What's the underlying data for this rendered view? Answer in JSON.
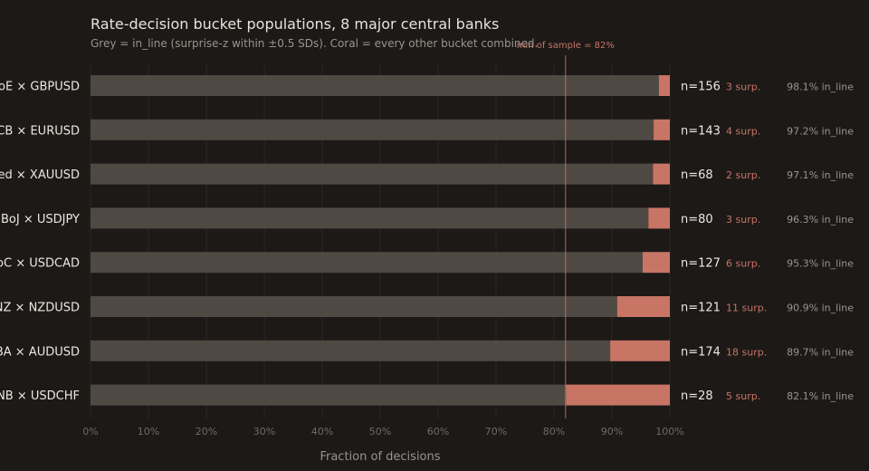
{
  "colors": {
    "background": "#1c1917",
    "in_line": "#4f4944",
    "other": "#c87565",
    "grid": "#2c2825",
    "text": "#ece7e1",
    "muted": "#9a948e"
  },
  "chart_data": {
    "type": "bar",
    "orientation": "horizontal",
    "stacked": true,
    "title": "Rate-decision bucket populations, 8 major central banks",
    "subtitle": "Grey = in_line (surprise-z within ±0.5 SDs). Coral = every other bucket combined.",
    "xlabel": "Fraction of decisions",
    "xlim": [
      0,
      100
    ],
    "x_ticks": [
      "0%",
      "10%",
      "20%",
      "30%",
      "40%",
      "50%",
      "60%",
      "70%",
      "80%",
      "90%",
      "100%"
    ],
    "grid": "vertical",
    "categories": [
      "BoE × GBPUSD",
      "ECB × EURUSD",
      "Fed × XAUUSD",
      "BoJ × USDJPY",
      "BoC × USDCAD",
      "RBNZ × NZDUSD",
      "RBA × AUDUSD",
      "SNB × USDCHF"
    ],
    "series": [
      {
        "values": [
          98.1,
          97.2,
          97.1,
          96.3,
          95.3,
          90.9,
          89.7,
          82.1
        ]
      },
      {
        "values": [
          1.9,
          2.8,
          2.9,
          3.7,
          4.7,
          9.1,
          10.3,
          17.9
        ]
      }
    ],
    "n_labels": [
      "n=156",
      "n=143",
      "n=68",
      "n=80",
      "n=127",
      "n=121",
      "n=174",
      "n=28"
    ],
    "surprise_labels": [
      "3 surp.",
      "4 surp.",
      "2 surp.",
      "3 surp.",
      "6 surp.",
      "11 surp.",
      "18 surp.",
      "5 surp."
    ],
    "pct_labels": [
      "98.1% in_line",
      "97.2% in_line",
      "97.1% in_line",
      "96.3% in_line",
      "95.3% in_line",
      "90.9% in_line",
      "89.7% in_line",
      "82.1% in_line"
    ],
    "reference_line": {
      "value": 82,
      "label": "min of sample = 82%"
    }
  }
}
